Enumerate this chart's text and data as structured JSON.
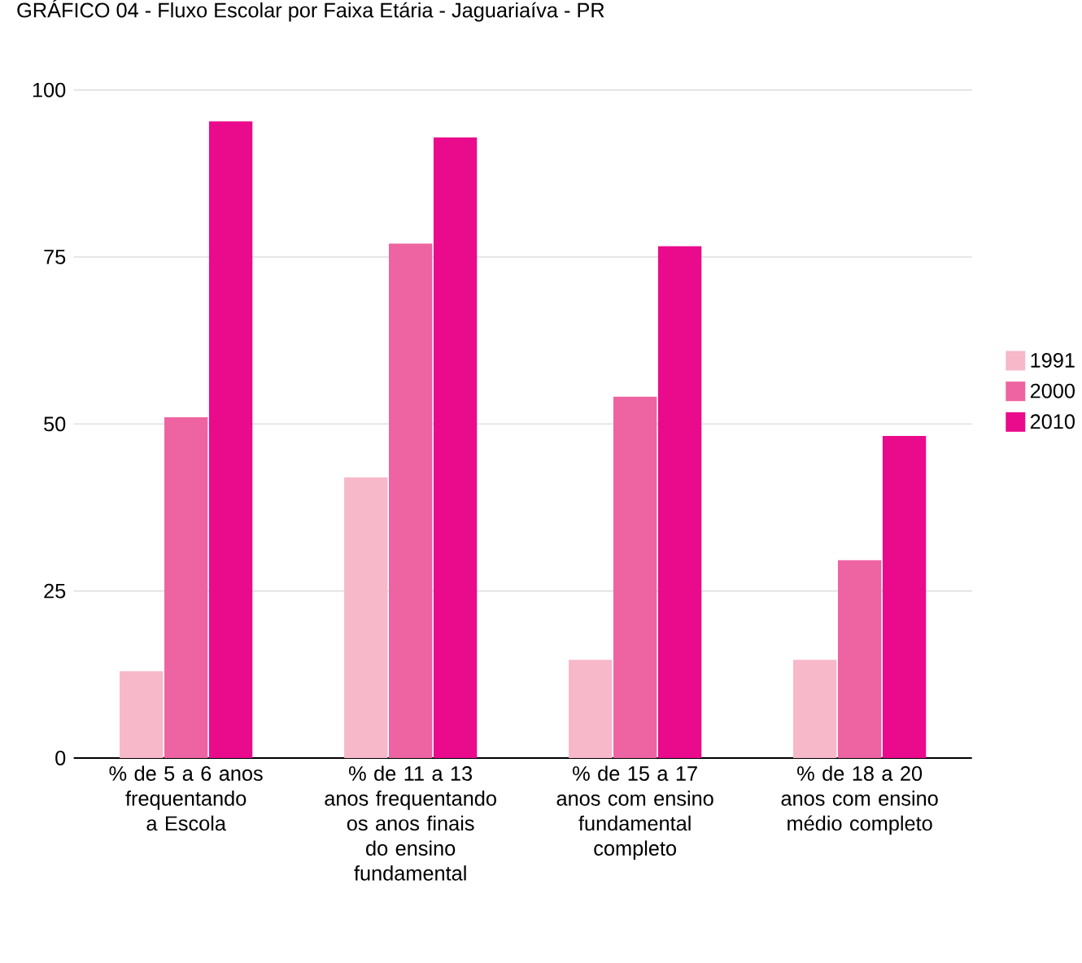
{
  "chart_data": {
    "type": "bar",
    "title": "GRÁFICO 04 -  Fluxo Escolar por Faixa Etária - Jaguariaíva - PR",
    "categories": [
      "% de 5 a 6 anos frequentando a Escola",
      "% de 11 a 13 anos frequentando os anos finais do ensino fundamental",
      "% de 15 a 17 anos com ensino fundamental completo",
      "% de 18 a 20 anos com ensino médio completo"
    ],
    "series": [
      {
        "name": "1991",
        "color": "#f7b8c9",
        "values": [
          13,
          42,
          14.7,
          14.7
        ]
      },
      {
        "name": "2000",
        "color": "#ee64a3",
        "values": [
          51,
          77,
          54.1,
          29.6
        ]
      },
      {
        "name": "2010",
        "color": "#ea0a8c",
        "values": [
          95.3,
          92.9,
          76.6,
          48.2
        ]
      }
    ],
    "ylim": [
      0,
      100
    ],
    "yticks": [
      0,
      25,
      50,
      75,
      100
    ],
    "grid": "y",
    "legend": "right"
  }
}
